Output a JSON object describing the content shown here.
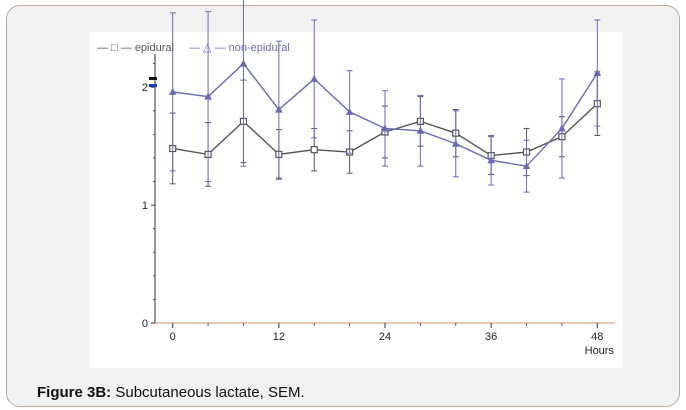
{
  "caption": {
    "label": "Figure 3B:",
    "text": " Subcutaneous lactate, SEM."
  },
  "colors": {
    "epidural": "#555555",
    "non_epidural": "#6a6ab4",
    "axis": "#333333",
    "baseline": "#e0a090",
    "frame_border": "#c0a99a"
  },
  "chart_data": {
    "type": "line",
    "title": "",
    "xlabel": "Hours",
    "ylabel": "",
    "xlim": [
      -2,
      50
    ],
    "ylim": [
      0,
      2.4
    ],
    "xticks": [
      0,
      12,
      24,
      36,
      48
    ],
    "yticks": [
      0,
      1,
      2
    ],
    "grid": false,
    "legend_position": "top-left",
    "series": [
      {
        "name": "epidural",
        "legend": "— □ —  epidural",
        "marker": "square",
        "x": [
          0,
          4,
          8,
          12,
          16,
          20,
          24,
          28,
          32,
          36,
          40,
          44,
          48
        ],
        "y": [
          1.48,
          1.43,
          1.71,
          1.43,
          1.47,
          1.45,
          1.62,
          1.71,
          1.61,
          1.42,
          1.45,
          1.58,
          1.86
        ],
        "err": [
          0.3,
          0.27,
          0.35,
          0.21,
          0.18,
          0.18,
          0.22,
          0.21,
          0.2,
          0.16,
          0.2,
          0.17,
          0.27
        ]
      },
      {
        "name": "non-epidural",
        "legend": "— △ —  non-epidural",
        "marker": "triangle",
        "x": [
          0,
          4,
          8,
          12,
          16,
          20,
          24,
          28,
          32,
          36,
          40,
          44,
          48
        ],
        "y": [
          1.96,
          1.92,
          2.2,
          1.81,
          2.07,
          1.79,
          1.65,
          1.63,
          1.52,
          1.38,
          1.33,
          1.65,
          2.12
        ],
        "err": [
          0.67,
          0.72,
          0.87,
          0.58,
          0.5,
          0.35,
          0.32,
          0.3,
          0.28,
          0.21,
          0.22,
          0.42,
          0.45
        ]
      }
    ]
  }
}
